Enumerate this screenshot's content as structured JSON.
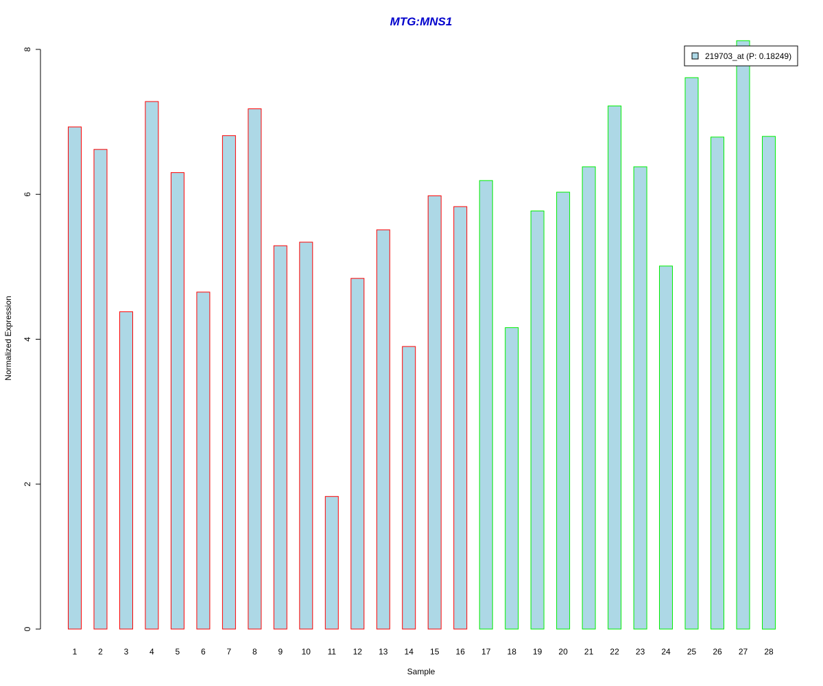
{
  "chart_data": {
    "type": "bar",
    "title": "MTG:MNS1",
    "xlabel": "Sample",
    "ylabel": "Normalized Expression",
    "ylim": [
      0,
      8
    ],
    "yticks": [
      0,
      2,
      4,
      6,
      8
    ],
    "grid": false,
    "legend_position": "top-right",
    "categories": [
      "1",
      "2",
      "3",
      "4",
      "5",
      "6",
      "7",
      "8",
      "9",
      "10",
      "11",
      "12",
      "13",
      "14",
      "15",
      "16",
      "17",
      "18",
      "19",
      "20",
      "21",
      "22",
      "23",
      "24",
      "25",
      "26",
      "27",
      "28"
    ],
    "series": [
      {
        "name": "219703_at (P: 0.18249)",
        "values": [
          6.93,
          6.62,
          4.38,
          7.28,
          6.3,
          4.65,
          6.81,
          7.18,
          5.29,
          5.34,
          1.83,
          4.84,
          5.51,
          3.9,
          5.98,
          5.83,
          6.19,
          4.16,
          5.77,
          6.03,
          6.38,
          7.22,
          6.38,
          5.01,
          7.61,
          6.79,
          8.12,
          6.8
        ]
      }
    ],
    "groups": [
      {
        "samples": [
          1,
          16
        ],
        "border_color": "#ff0000"
      },
      {
        "samples": [
          17,
          28
        ],
        "border_color": "#00ee00"
      }
    ],
    "colors": {
      "title": "#0000cc",
      "bar_fill": "#add8e6",
      "group1_border": "#ff0000",
      "group2_border": "#00ee00",
      "axis": "#000000"
    }
  }
}
